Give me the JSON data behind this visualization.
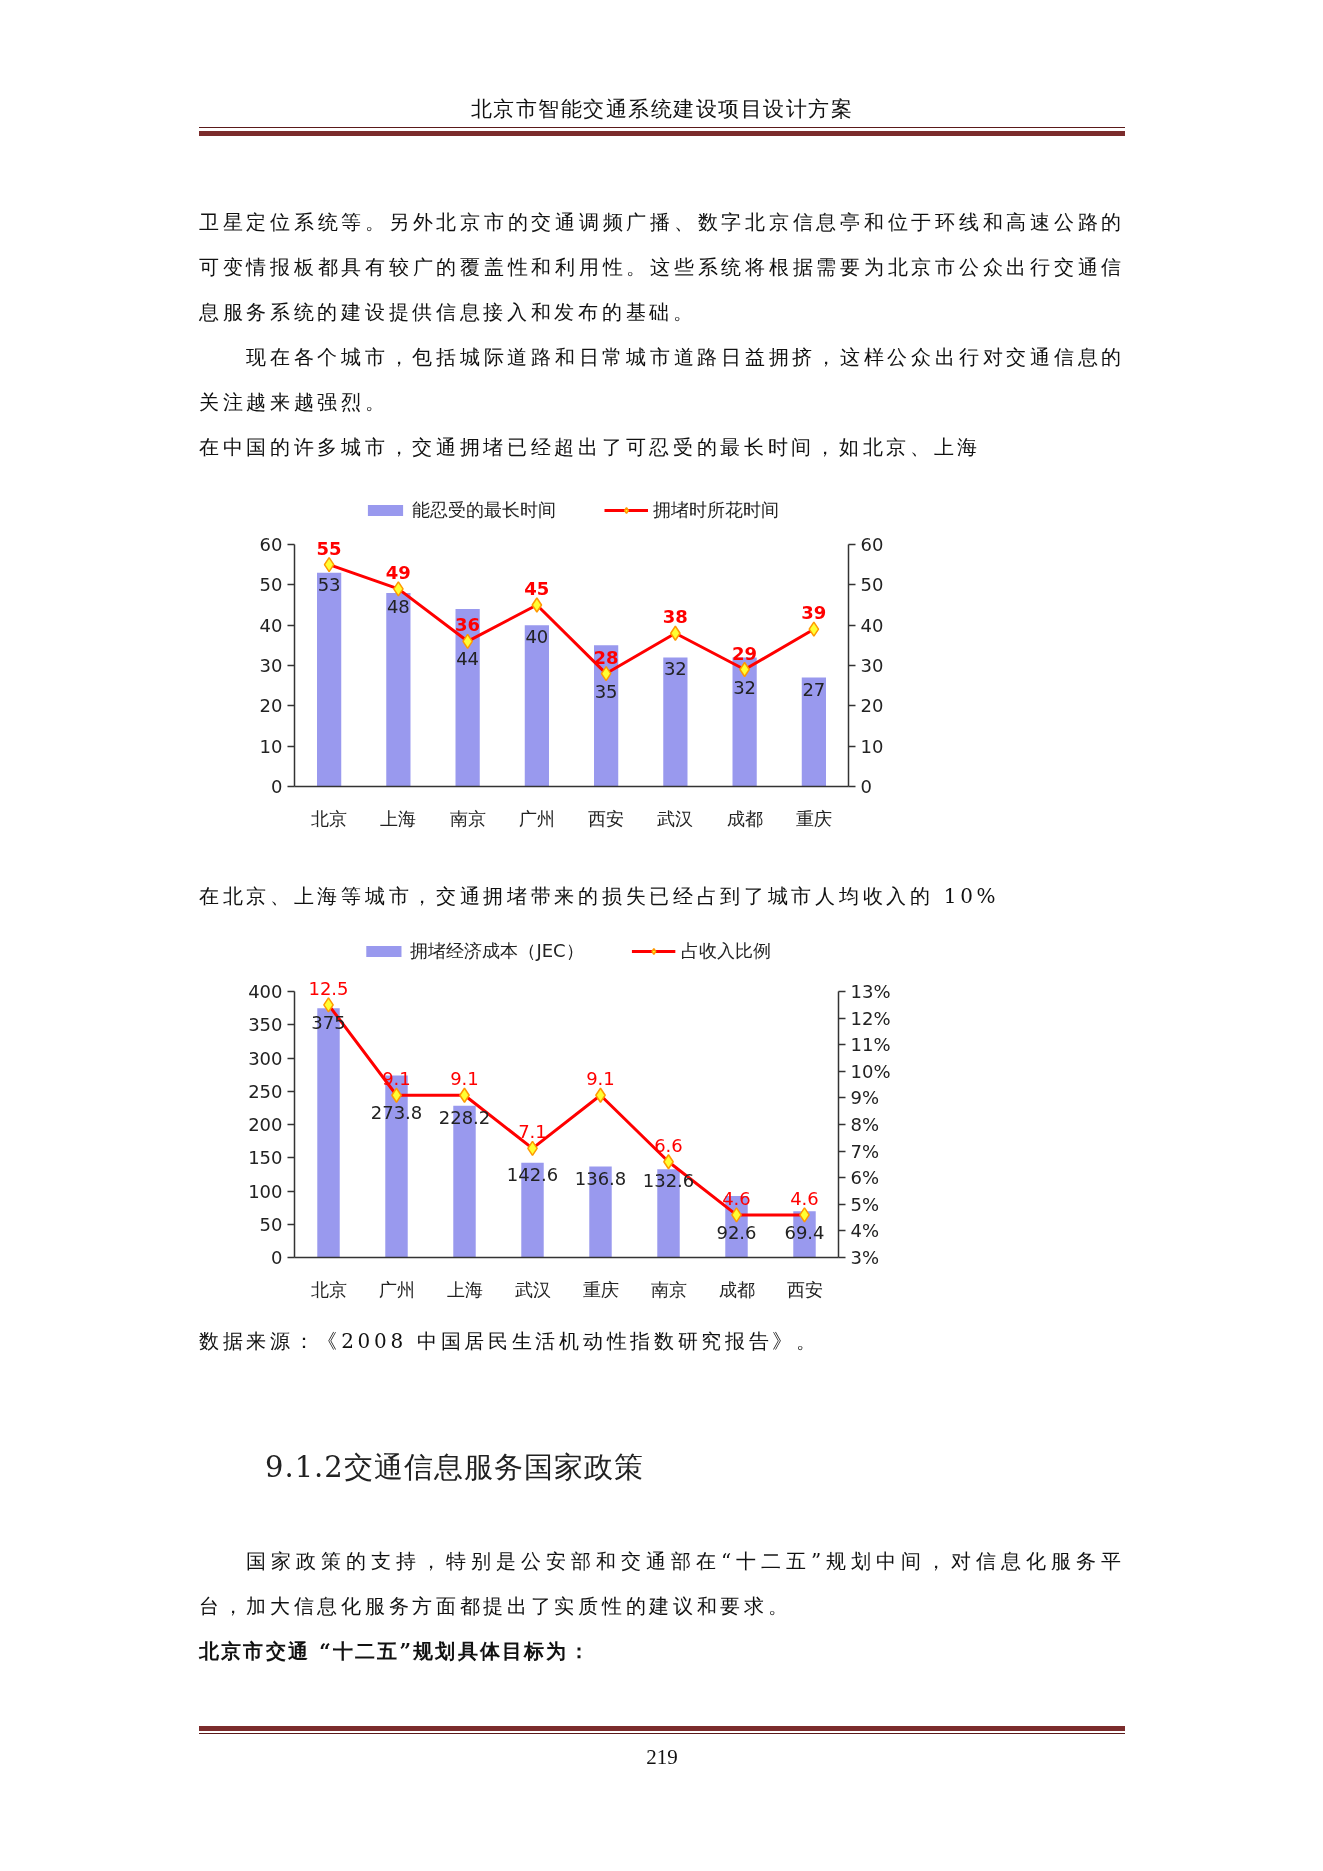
{
  "chart_data": [
    {
      "type": "bar",
      "title": "在中国的许多城市，交通拥堵已经超出了可忍受的最长时间，如北京、上海",
      "annotations": [
        "北京市智能交通系统建设项目设计方案",
        "卫星定位系统等。另外北京市的交通调频广播、数字北京信息亭和位于环线和高速公路的可变情报板都具有较广的覆盖性和利用性。这些系统将根据需要为北京市公众出行交通信息服务系统的建设提供信息接入和发布的基础。",
        "现在各个城市，包括城际道路和日常城市道路日益拥挤，这样公众出行对交通信息的关注越来越强烈。"
      ],
      "categories": [
        "北京",
        "上海",
        "南京",
        "广州",
        "西安",
        "武汉",
        "成都",
        "重庆"
      ],
      "series": [
        {
          "name": "能忍受的最长时间",
          "color": "#9999ee",
          "values": [
            53,
            48,
            44,
            40,
            35,
            32,
            32,
            27
          ]
        },
        {
          "name": "拥堵时所花时间",
          "type": "line",
          "axis": "y2",
          "color": "#ff0000",
          "values": [
            55,
            49,
            36,
            45,
            28,
            38,
            29,
            39
          ]
        }
      ],
      "ylim": [
        0,
        60
      ],
      "yticks": [
        0,
        10,
        20,
        30,
        40,
        50,
        60
      ],
      "y2lim": [
        0,
        60
      ],
      "y2ticks": [
        0,
        10,
        20,
        30,
        40,
        50,
        60
      ],
      "data_labels": true,
      "legend": "top",
      "grid": false,
      "marker": "diamond",
      "line_style": "solid"
    },
    {
      "type": "bar",
      "title": "在北京、上海等城市，交通拥堵带来的损失已经占到了城市人均收入的 10%",
      "categories": [
        "北京",
        "广州",
        "上海",
        "武汉",
        "重庆",
        "南京",
        "成都",
        "西安"
      ],
      "series": [
        {
          "name": "拥堵经济成本（JEC）",
          "color": "#9999ee",
          "values": [
            375,
            273.8,
            228.2,
            142.6,
            136.8,
            132.6,
            92.6,
            69.4
          ]
        },
        {
          "name": "占收入比例",
          "type": "line",
          "axis": "y2",
          "color": "#ff0000",
          "values": [
            12.5,
            9.1,
            9.1,
            7.1,
            9.1,
            6.6,
            4.6,
            4.6
          ]
        }
      ],
      "ylim": [
        0,
        400
      ],
      "yticks": [
        0,
        50,
        100,
        150,
        200,
        250,
        300,
        350,
        400
      ],
      "y2lim": [
        3,
        13
      ],
      "y2ticks": [
        {
          "value": 3,
          "label": "3%"
        },
        {
          "value": 4,
          "label": "4%"
        },
        {
          "value": 5,
          "label": "5%"
        },
        {
          "value": 6,
          "label": "6%"
        },
        {
          "value": 7,
          "label": "7%"
        },
        {
          "value": 8,
          "label": "8%"
        },
        {
          "value": 9,
          "label": "9%"
        },
        {
          "value": 10,
          "label": "10%"
        },
        {
          "value": 11,
          "label": "11%"
        },
        {
          "value": 12,
          "label": "12%"
        },
        {
          "value": 13,
          "label": "13%"
        }
      ],
      "data_labels": true,
      "legend": "top",
      "grid": false,
      "marker": "diamond",
      "line_style": "solid",
      "annotations": [
        "数据来源：《2008 中国居民生活机动性指数研究报告》。",
        "9.1.2交通信息服务国家政策",
        "国家政策的支持，特别是公安部和交通部在“十二五”规划中间，对信息化服务平台，加大信息化服务方面都提出了实质性的建议和要求。",
        "北京市交通 “十二五”规划具体目标为：",
        "219"
      ]
    }
  ]
}
